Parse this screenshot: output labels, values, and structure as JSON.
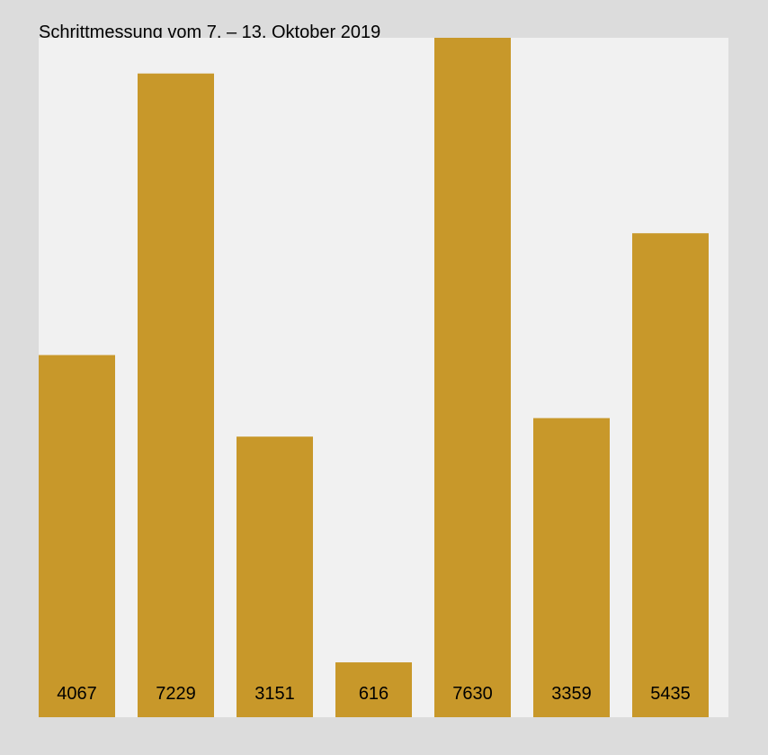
{
  "chart_data": {
    "type": "bar",
    "title": "Schrittmessung vom 7. – 13. Oktober 2019",
    "values": [
      4067,
      7229,
      3151,
      616,
      7630,
      3359,
      5435
    ],
    "color": "#c8982a",
    "ylim": [
      0,
      7630
    ]
  }
}
